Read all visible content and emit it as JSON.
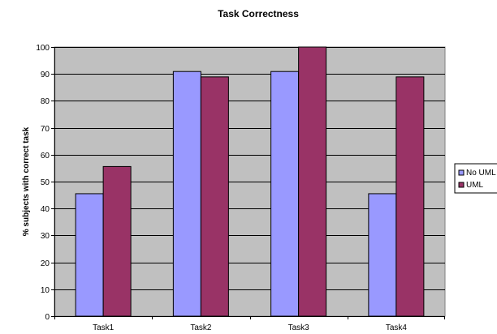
{
  "chart_data": {
    "type": "bar",
    "title": "Task Correctness",
    "xlabel": "",
    "ylabel": "% subjects with correct task",
    "categories": [
      "Task1",
      "Task2",
      "Task3",
      "Task4"
    ],
    "series": [
      {
        "name": "No UML",
        "values": [
          45.5,
          90.9,
          90.9,
          45.5
        ],
        "color": "#9999ff"
      },
      {
        "name": "UML",
        "values": [
          55.6,
          88.9,
          100,
          88.9
        ],
        "color": "#993366"
      }
    ],
    "ylim": [
      0,
      100
    ],
    "yticks": [
      0,
      10,
      20,
      30,
      40,
      50,
      60,
      70,
      80,
      90,
      100
    ],
    "plot_background": "#c0c0c0",
    "grid": true,
    "legend": "right"
  }
}
